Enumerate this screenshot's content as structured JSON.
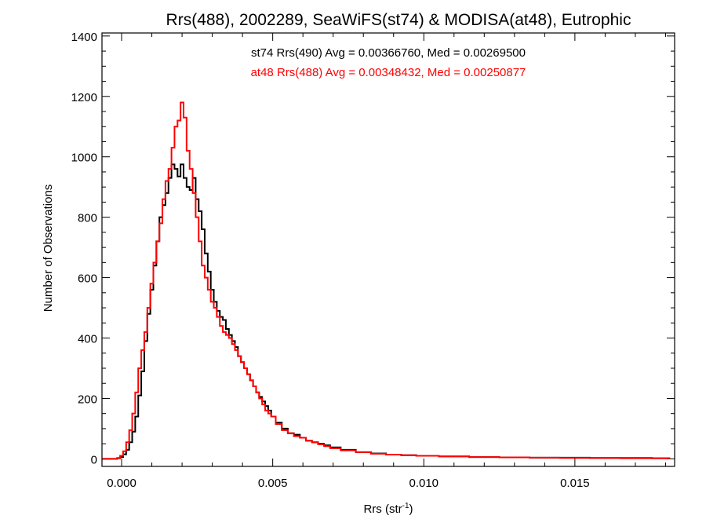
{
  "chart_data": {
    "type": "line",
    "title": "Rrs(488), 2002289, SeaWiFS(st74) & MODISA(at48), Eutrophic",
    "xlabel": {
      "base": "Rrs (str",
      "sup": "-1",
      "end": ")"
    },
    "ylabel": "Number of Observations",
    "xlim": [
      -0.00065,
      0.0183
    ],
    "ylim": [
      -25,
      1410
    ],
    "x_ticks": [
      0.0,
      0.005,
      0.01,
      0.015
    ],
    "x_tick_labels": [
      "0.000",
      "0.005",
      "0.010",
      "0.015"
    ],
    "x_minor_step": 0.001,
    "y_ticks": [
      0,
      200,
      400,
      600,
      800,
      1000,
      1200,
      1400
    ],
    "y_tick_labels": [
      "0",
      "200",
      "400",
      "600",
      "800",
      "1000",
      "1200",
      "1400"
    ],
    "y_minor_step": 50,
    "bin_width": 0.0001,
    "annotations": [
      {
        "text": "st74 Rrs(490) Avg = 0.00366760, Med = 0.00269500",
        "color": "#000000"
      },
      {
        "text": "at48 Rrs(488) Avg = 0.00348432, Med = 0.00250877",
        "color": "#ff0000"
      }
    ],
    "series": [
      {
        "color": "#000000",
        "x": [
          -0.0006,
          -0.0005,
          -0.0004,
          -0.0003,
          -0.0002,
          -0.0001,
          0.0,
          0.0001,
          0.0002,
          0.0003,
          0.0004,
          0.0005,
          0.0006,
          0.0007,
          0.0008,
          0.0009,
          0.001,
          0.0011,
          0.0012,
          0.0013,
          0.0014,
          0.0015,
          0.0016,
          0.0017,
          0.0018,
          0.0019,
          0.002,
          0.0021,
          0.0022,
          0.0023,
          0.0024,
          0.0025,
          0.0026,
          0.0027,
          0.0028,
          0.0029,
          0.003,
          0.0031,
          0.0032,
          0.0033,
          0.0034,
          0.0035,
          0.0036,
          0.0037,
          0.0038,
          0.0039,
          0.004,
          0.0041,
          0.0042,
          0.0043,
          0.0044,
          0.0045,
          0.0046,
          0.0047,
          0.0048,
          0.0049,
          0.005,
          0.0052,
          0.0054,
          0.0056,
          0.0058,
          0.006,
          0.0062,
          0.0064,
          0.0066,
          0.0068,
          0.007,
          0.0075,
          0.008,
          0.0085,
          0.009,
          0.0095,
          0.01,
          0.011,
          0.012,
          0.013,
          0.014,
          0.015,
          0.016,
          0.017,
          0.0181
        ],
        "y": [
          0,
          0,
          0,
          0,
          0,
          2,
          6,
          15,
          30,
          55,
          90,
          140,
          210,
          290,
          390,
          480,
          560,
          640,
          720,
          800,
          840,
          880,
          930,
          975,
          960,
          935,
          975,
          930,
          900,
          890,
          930,
          860,
          820,
          760,
          680,
          620,
          560,
          520,
          490,
          470,
          460,
          430,
          410,
          390,
          370,
          340,
          320,
          300,
          280,
          260,
          240,
          220,
          205,
          190,
          175,
          160,
          140,
          120,
          100,
          85,
          80,
          70,
          60,
          55,
          50,
          45,
          38,
          30,
          22,
          18,
          14,
          12,
          10,
          8,
          6,
          5,
          4,
          4,
          3,
          3,
          2
        ]
      },
      {
        "color": "#ff0000",
        "x": [
          -0.0006,
          -0.0005,
          -0.0004,
          -0.0003,
          -0.0002,
          -0.0001,
          0.0,
          0.0001,
          0.0002,
          0.0003,
          0.0004,
          0.0005,
          0.0006,
          0.0007,
          0.0008,
          0.0009,
          0.001,
          0.0011,
          0.0012,
          0.0013,
          0.0014,
          0.0015,
          0.0016,
          0.0017,
          0.0018,
          0.0019,
          0.002,
          0.0021,
          0.0022,
          0.0023,
          0.0024,
          0.0025,
          0.0026,
          0.0027,
          0.0028,
          0.0029,
          0.003,
          0.0031,
          0.0032,
          0.0033,
          0.0034,
          0.0035,
          0.0036,
          0.0037,
          0.0038,
          0.0039,
          0.004,
          0.0041,
          0.0042,
          0.0043,
          0.0044,
          0.0045,
          0.0046,
          0.0047,
          0.0048,
          0.0049,
          0.005,
          0.0052,
          0.0054,
          0.0056,
          0.0058,
          0.006,
          0.0062,
          0.0064,
          0.0066,
          0.0068,
          0.007,
          0.0075,
          0.008,
          0.0085,
          0.009,
          0.0095,
          0.01,
          0.011,
          0.012,
          0.013,
          0.014,
          0.015,
          0.016,
          0.017,
          0.0181
        ],
        "y": [
          0,
          0,
          0,
          0,
          0,
          3,
          10,
          25,
          55,
          95,
          150,
          220,
          300,
          360,
          420,
          500,
          580,
          650,
          720,
          780,
          860,
          920,
          960,
          1030,
          1100,
          1120,
          1180,
          1130,
          1020,
          960,
          880,
          800,
          720,
          640,
          600,
          560,
          520,
          500,
          470,
          440,
          420,
          410,
          400,
          380,
          360,
          340,
          320,
          300,
          280,
          260,
          240,
          220,
          200,
          180,
          160,
          150,
          140,
          115,
          95,
          85,
          75,
          70,
          60,
          55,
          48,
          42,
          35,
          28,
          22,
          17,
          14,
          12,
          10,
          8,
          6,
          5,
          4,
          3,
          3,
          2,
          2
        ]
      }
    ]
  }
}
